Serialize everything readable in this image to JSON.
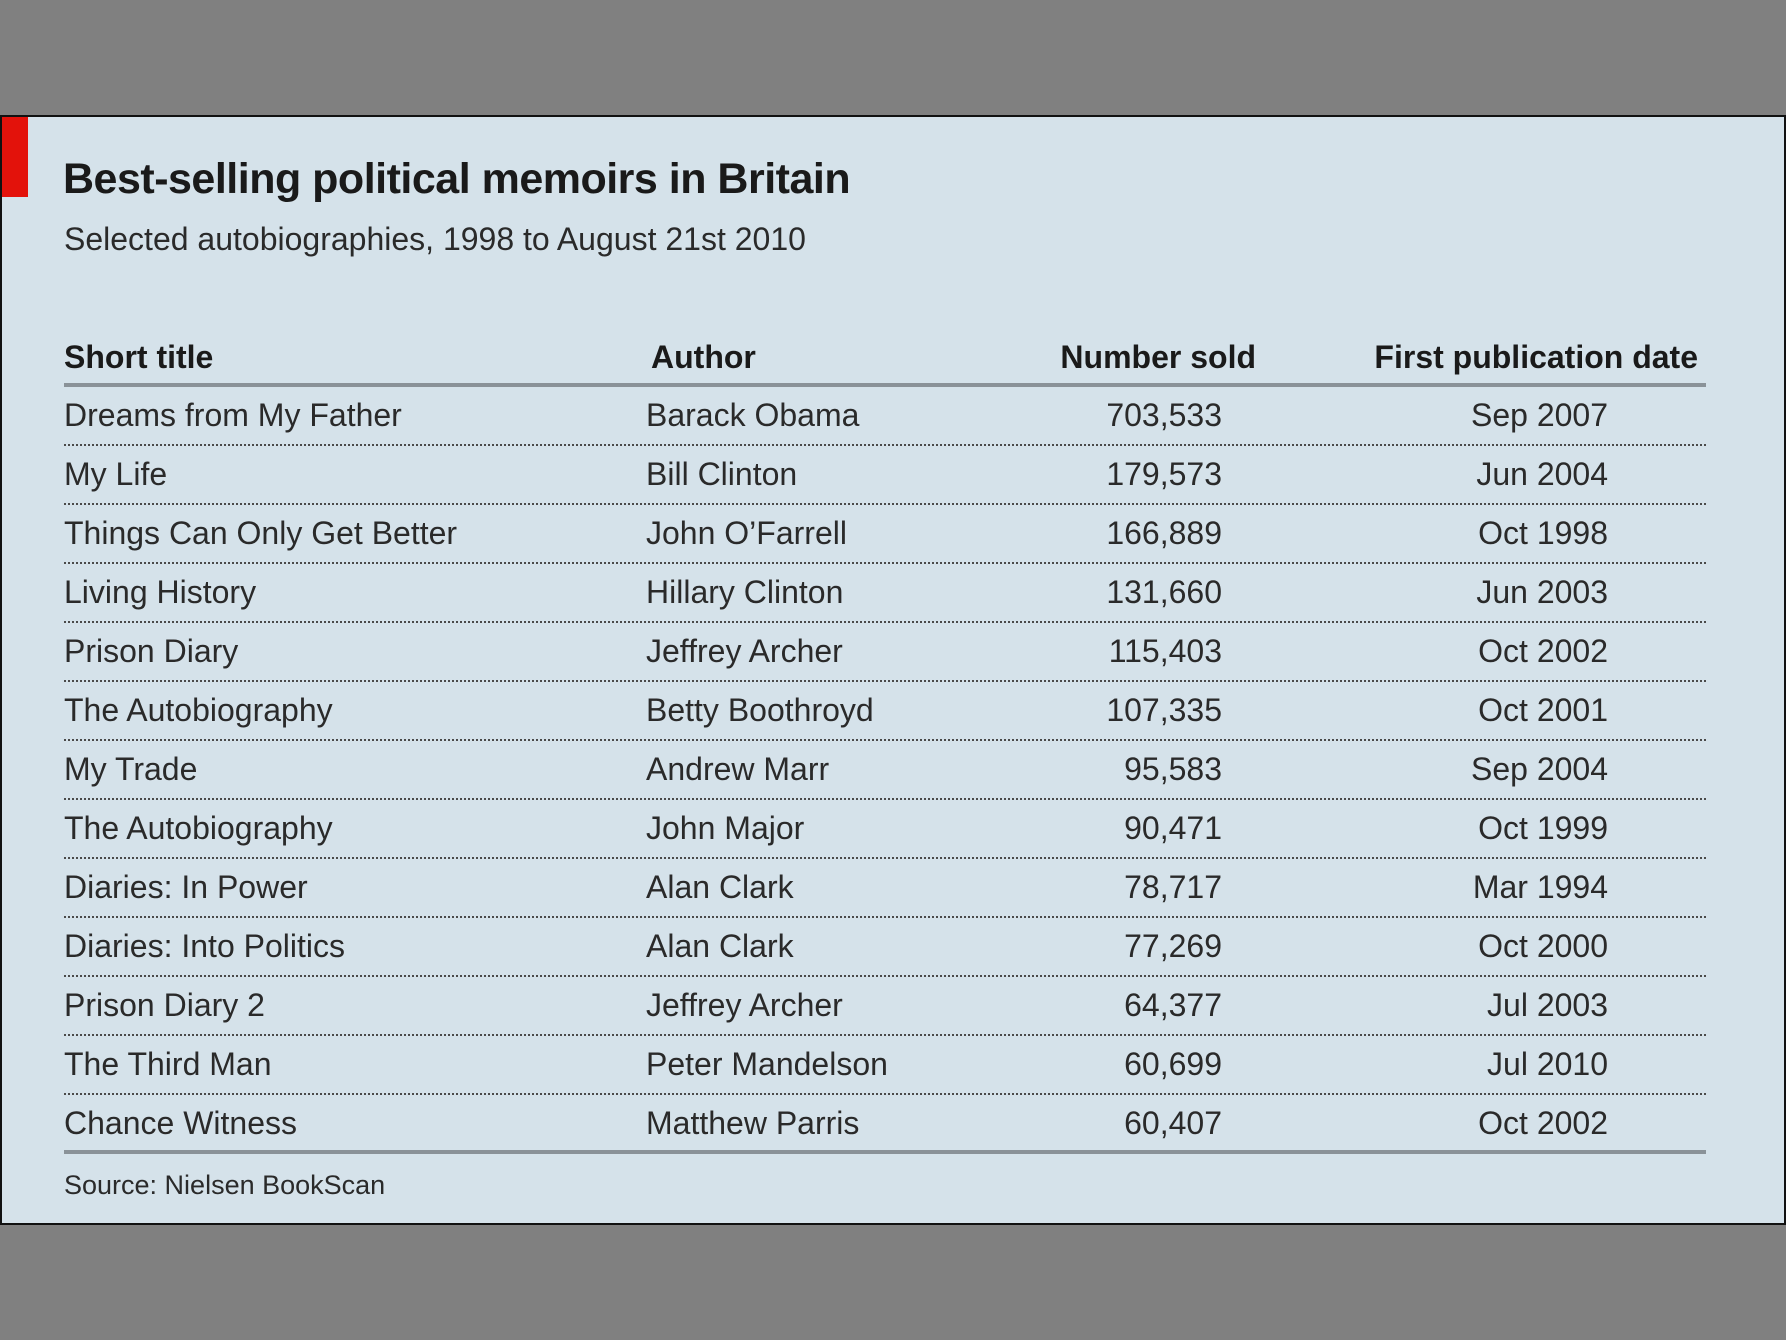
{
  "chart_data": {
    "type": "table",
    "title": "Best-selling political memoirs in Britain",
    "subtitle": "Selected autobiographies, 1998 to August 21st 2010",
    "columns": [
      "Short title",
      "Author",
      "Number sold",
      "First publication date"
    ],
    "rows": [
      [
        "Dreams from My Father",
        "Barack Obama",
        "703,533",
        "Sep 2007"
      ],
      [
        "My Life",
        "Bill Clinton",
        "179,573",
        "Jun 2004"
      ],
      [
        "Things Can Only Get Better",
        "John O’Farrell",
        "166,889",
        "Oct 1998"
      ],
      [
        "Living History",
        "Hillary Clinton",
        "131,660",
        "Jun 2003"
      ],
      [
        "Prison Diary",
        "Jeffrey Archer",
        "115,403",
        "Oct 2002"
      ],
      [
        "The Autobiography",
        "Betty Boothroyd",
        "107,335",
        "Oct 2001"
      ],
      [
        "My Trade",
        "Andrew Marr",
        "95,583",
        "Sep 2004"
      ],
      [
        "The Autobiography",
        "John Major",
        "90,471",
        "Oct 1999"
      ],
      [
        "Diaries: In Power",
        "Alan Clark",
        "78,717",
        "Mar 1994"
      ],
      [
        "Diaries: Into Politics",
        "Alan Clark",
        "77,269",
        "Oct 2000"
      ],
      [
        "Prison Diary 2",
        "Jeffrey Archer",
        "64,377",
        "Jul 2003"
      ],
      [
        "The Third Man",
        "Peter Mandelson",
        "60,699",
        "Jul 2010"
      ],
      [
        "Chance Witness",
        "Matthew Parris",
        "60,407",
        "Oct 2002"
      ]
    ],
    "source": "Source: Nielsen BookScan"
  },
  "colors": {
    "background": "#d5e2ea",
    "accent": "#e3120b",
    "frame": "#808080"
  }
}
